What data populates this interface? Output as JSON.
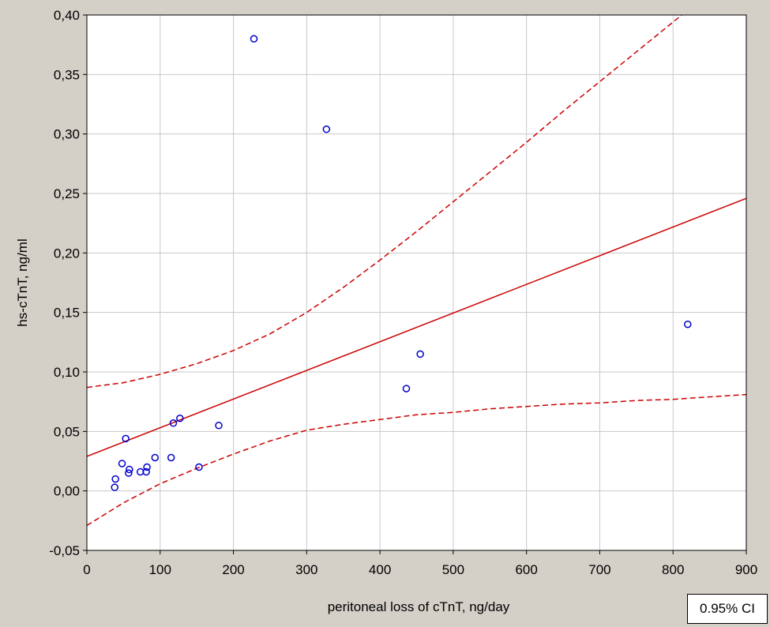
{
  "chart_data": {
    "type": "scatter",
    "xlabel": "peritoneal loss of cTnT, ng/day",
    "ylabel": "hs-cTnT, ng/ml",
    "xlim": [
      0,
      900
    ],
    "ylim": [
      -0.05,
      0.4
    ],
    "x_ticks": [
      0,
      100,
      200,
      300,
      400,
      500,
      600,
      700,
      800,
      900
    ],
    "y_ticks": [
      -0.05,
      0.0,
      0.05,
      0.1,
      0.15,
      0.2,
      0.25,
      0.3,
      0.35,
      0.4
    ],
    "x_tick_labels": [
      "0",
      "100",
      "200",
      "300",
      "400",
      "500",
      "600",
      "700",
      "800",
      "900"
    ],
    "y_tick_labels": [
      "-0,05",
      "0,00",
      "0,05",
      "0,10",
      "0,15",
      "0,20",
      "0,25",
      "0,30",
      "0,35",
      "0,40"
    ],
    "grid": true,
    "points": [
      {
        "x": 38,
        "y": 0.003
      },
      {
        "x": 39,
        "y": 0.01
      },
      {
        "x": 48,
        "y": 0.023
      },
      {
        "x": 53,
        "y": 0.044
      },
      {
        "x": 57,
        "y": 0.015
      },
      {
        "x": 58,
        "y": 0.018
      },
      {
        "x": 73,
        "y": 0.016
      },
      {
        "x": 81,
        "y": 0.016
      },
      {
        "x": 82,
        "y": 0.02
      },
      {
        "x": 93,
        "y": 0.028
      },
      {
        "x": 115,
        "y": 0.028
      },
      {
        "x": 118,
        "y": 0.057
      },
      {
        "x": 127,
        "y": 0.061
      },
      {
        "x": 153,
        "y": 0.02
      },
      {
        "x": 180,
        "y": 0.055
      },
      {
        "x": 228,
        "y": 0.38
      },
      {
        "x": 327,
        "y": 0.304
      },
      {
        "x": 436,
        "y": 0.086
      },
      {
        "x": 455,
        "y": 0.115
      },
      {
        "x": 820,
        "y": 0.14
      }
    ],
    "regression": {
      "intercept": 0.029,
      "slope": 0.000241
    },
    "ci_upper": [
      {
        "x": 0,
        "y": 0.087
      },
      {
        "x": 50,
        "y": 0.091
      },
      {
        "x": 100,
        "y": 0.098
      },
      {
        "x": 150,
        "y": 0.107
      },
      {
        "x": 200,
        "y": 0.118
      },
      {
        "x": 250,
        "y": 0.132
      },
      {
        "x": 300,
        "y": 0.15
      },
      {
        "x": 350,
        "y": 0.171
      },
      {
        "x": 400,
        "y": 0.194
      },
      {
        "x": 450,
        "y": 0.218
      },
      {
        "x": 500,
        "y": 0.243
      },
      {
        "x": 550,
        "y": 0.268
      },
      {
        "x": 600,
        "y": 0.293
      },
      {
        "x": 650,
        "y": 0.319
      },
      {
        "x": 700,
        "y": 0.344
      },
      {
        "x": 750,
        "y": 0.369
      },
      {
        "x": 800,
        "y": 0.394
      },
      {
        "x": 850,
        "y": 0.419
      },
      {
        "x": 900,
        "y": 0.444
      }
    ],
    "ci_lower": [
      {
        "x": 0,
        "y": -0.029
      },
      {
        "x": 50,
        "y": -0.01
      },
      {
        "x": 100,
        "y": 0.006
      },
      {
        "x": 150,
        "y": 0.019
      },
      {
        "x": 200,
        "y": 0.031
      },
      {
        "x": 250,
        "y": 0.042
      },
      {
        "x": 300,
        "y": 0.051
      },
      {
        "x": 350,
        "y": 0.056
      },
      {
        "x": 400,
        "y": 0.06
      },
      {
        "x": 450,
        "y": 0.064
      },
      {
        "x": 500,
        "y": 0.066
      },
      {
        "x": 550,
        "y": 0.069
      },
      {
        "x": 600,
        "y": 0.071
      },
      {
        "x": 650,
        "y": 0.073
      },
      {
        "x": 700,
        "y": 0.074
      },
      {
        "x": 750,
        "y": 0.076
      },
      {
        "x": 800,
        "y": 0.077
      },
      {
        "x": 850,
        "y": 0.079
      },
      {
        "x": 900,
        "y": 0.081
      }
    ],
    "colors": {
      "points": "#0000cc",
      "fit_line": "#cc0000",
      "ci_lines": "#cc0000",
      "grid": "#c8c8c8",
      "plot_background": "#ffffff",
      "page_background": "#d4d0c8"
    }
  },
  "ci_button_label": "0.95% CI"
}
